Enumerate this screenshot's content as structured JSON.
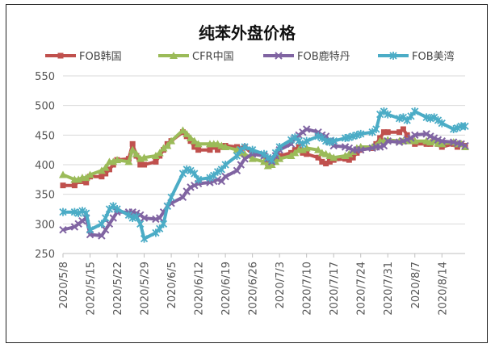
{
  "chart_data": {
    "type": "line",
    "title": "纯苯外盘价格",
    "xlabel": "",
    "ylabel": "",
    "ylim": [
      250,
      550
    ],
    "yticks": [
      "550",
      "500",
      "450",
      "400",
      "350",
      "300",
      "250"
    ],
    "xtick_labels": [
      "2020/5/8",
      "2020/5/15",
      "2020/5/22",
      "2020/5/29",
      "2020/6/5",
      "2020/6/12",
      "2020/6/19",
      "2020/6/26",
      "2020/7/3",
      "2020/7/10",
      "2020/7/17",
      "2020/7/24",
      "2020/7/31",
      "2020/8/7",
      "2020/8/14"
    ],
    "x_start": "2020/5/8",
    "x_end": "2020/8/20",
    "grid": true,
    "legend_position": "top",
    "series": [
      {
        "name": "FOB韩国",
        "color": "#C0504D",
        "marker": "square",
        "x": [
          "2020/5/8",
          "2020/5/11",
          "2020/5/12",
          "2020/5/13",
          "2020/5/14",
          "2020/5/15",
          "2020/5/18",
          "2020/5/19",
          "2020/5/20",
          "2020/5/21",
          "2020/5/22",
          "2020/5/25",
          "2020/5/26",
          "2020/5/27",
          "2020/5/28",
          "2020/5/29",
          "2020/6/1",
          "2020/6/2",
          "2020/6/3",
          "2020/6/4",
          "2020/6/5",
          "2020/6/8",
          "2020/6/9",
          "2020/6/10",
          "2020/6/11",
          "2020/6/12",
          "2020/6/15",
          "2020/6/16",
          "2020/6/17",
          "2020/6/18",
          "2020/6/19",
          "2020/6/22",
          "2020/6/23",
          "2020/6/24",
          "2020/6/26",
          "2020/6/29",
          "2020/6/30",
          "2020/7/1",
          "2020/7/2",
          "2020/7/3",
          "2020/7/6",
          "2020/7/7",
          "2020/7/8",
          "2020/7/9",
          "2020/7/10",
          "2020/7/13",
          "2020/7/14",
          "2020/7/15",
          "2020/7/16",
          "2020/7/17",
          "2020/7/20",
          "2020/7/21",
          "2020/7/22",
          "2020/7/23",
          "2020/7/24",
          "2020/7/27",
          "2020/7/28",
          "2020/7/29",
          "2020/7/30",
          "2020/7/31",
          "2020/8/3",
          "2020/8/4",
          "2020/8/5",
          "2020/8/6",
          "2020/8/7",
          "2020/8/10",
          "2020/8/11",
          "2020/8/12",
          "2020/8/13",
          "2020/8/14",
          "2020/8/17",
          "2020/8/18",
          "2020/8/19",
          "2020/8/20"
        ],
        "values": [
          365,
          365,
          372,
          372,
          370,
          380,
          380,
          385,
          392,
          400,
          408,
          410,
          435,
          415,
          400,
          400,
          405,
          415,
          425,
          435,
          440,
          455,
          448,
          440,
          430,
          425,
          425,
          430,
          425,
          430,
          432,
          430,
          427,
          430,
          418,
          415,
          402,
          400,
          412,
          415,
          420,
          425,
          430,
          420,
          418,
          412,
          405,
          402,
          405,
          408,
          410,
          408,
          412,
          420,
          425,
          428,
          435,
          445,
          455,
          455,
          455,
          460,
          450,
          440,
          435,
          435,
          435,
          440,
          435,
          430,
          435,
          430,
          435,
          432
        ]
      },
      {
        "name": "CFR中国",
        "color": "#9BBB59",
        "marker": "triangle",
        "x": [
          "2020/5/8",
          "2020/5/11",
          "2020/5/12",
          "2020/5/13",
          "2020/5/14",
          "2020/5/15",
          "2020/5/18",
          "2020/5/19",
          "2020/5/20",
          "2020/5/21",
          "2020/5/22",
          "2020/5/25",
          "2020/5/26",
          "2020/5/27",
          "2020/5/28",
          "2020/5/29",
          "2020/6/1",
          "2020/6/2",
          "2020/6/3",
          "2020/6/4",
          "2020/6/5",
          "2020/6/8",
          "2020/6/9",
          "2020/6/10",
          "2020/6/11",
          "2020/6/12",
          "2020/6/15",
          "2020/6/16",
          "2020/6/17",
          "2020/6/18",
          "2020/6/19",
          "2020/6/22",
          "2020/6/23",
          "2020/6/24",
          "2020/6/26",
          "2020/6/29",
          "2020/6/30",
          "2020/7/1",
          "2020/7/2",
          "2020/7/3",
          "2020/7/6",
          "2020/7/7",
          "2020/7/8",
          "2020/7/9",
          "2020/7/10",
          "2020/7/13",
          "2020/7/14",
          "2020/7/15",
          "2020/7/16",
          "2020/7/17",
          "2020/7/20",
          "2020/7/21",
          "2020/7/22",
          "2020/7/23",
          "2020/7/24",
          "2020/7/27",
          "2020/7/28",
          "2020/7/29",
          "2020/7/30",
          "2020/7/31",
          "2020/8/3",
          "2020/8/4",
          "2020/8/5",
          "2020/8/6",
          "2020/8/7",
          "2020/8/10",
          "2020/8/11",
          "2020/8/12",
          "2020/8/13",
          "2020/8/14",
          "2020/8/17",
          "2020/8/18",
          "2020/8/19",
          "2020/8/20"
        ],
        "values": [
          383,
          375,
          375,
          378,
          378,
          383,
          390,
          395,
          405,
          405,
          408,
          405,
          425,
          418,
          410,
          412,
          415,
          420,
          428,
          432,
          440,
          458,
          452,
          445,
          440,
          435,
          435,
          435,
          435,
          432,
          430,
          425,
          420,
          418,
          410,
          405,
          398,
          400,
          405,
          410,
          415,
          420,
          425,
          425,
          428,
          425,
          420,
          418,
          415,
          412,
          415,
          418,
          422,
          428,
          430,
          430,
          432,
          440,
          440,
          442,
          440,
          440,
          440,
          442,
          440,
          440,
          438,
          440,
          436,
          435,
          438,
          435,
          435,
          430
        ]
      },
      {
        "name": "FOB鹿特丹",
        "color": "#8064A2",
        "marker": "x",
        "x": [
          "2020/5/8",
          "2020/5/11",
          "2020/5/12",
          "2020/5/13",
          "2020/5/14",
          "2020/5/15",
          "2020/5/18",
          "2020/5/19",
          "2020/5/20",
          "2020/5/21",
          "2020/5/22",
          "2020/5/25",
          "2020/5/26",
          "2020/5/27",
          "2020/5/28",
          "2020/5/29",
          "2020/6/1",
          "2020/6/2",
          "2020/6/3",
          "2020/6/4",
          "2020/6/5",
          "2020/6/8",
          "2020/6/9",
          "2020/6/10",
          "2020/6/11",
          "2020/6/12",
          "2020/6/15",
          "2020/6/16",
          "2020/6/17",
          "2020/6/18",
          "2020/6/19",
          "2020/6/22",
          "2020/6/23",
          "2020/6/24",
          "2020/6/26",
          "2020/6/29",
          "2020/6/30",
          "2020/7/1",
          "2020/7/2",
          "2020/7/3",
          "2020/7/6",
          "2020/7/7",
          "2020/7/8",
          "2020/7/9",
          "2020/7/10",
          "2020/7/13",
          "2020/7/14",
          "2020/7/15",
          "2020/7/16",
          "2020/7/17",
          "2020/7/20",
          "2020/7/21",
          "2020/7/22",
          "2020/7/23",
          "2020/7/24",
          "2020/7/27",
          "2020/7/28",
          "2020/7/29",
          "2020/7/30",
          "2020/7/31",
          "2020/8/3",
          "2020/8/4",
          "2020/8/5",
          "2020/8/6",
          "2020/8/7",
          "2020/8/10",
          "2020/8/11",
          "2020/8/12",
          "2020/8/13",
          "2020/8/14",
          "2020/8/17",
          "2020/8/18",
          "2020/8/19",
          "2020/8/20"
        ],
        "values": [
          290,
          295,
          300,
          305,
          310,
          282,
          280,
          290,
          300,
          310,
          320,
          320,
          320,
          318,
          315,
          310,
          308,
          310,
          320,
          330,
          335,
          345,
          355,
          362,
          365,
          368,
          370,
          372,
          375,
          372,
          380,
          390,
          400,
          410,
          418,
          415,
          410,
          405,
          415,
          425,
          435,
          445,
          450,
          455,
          460,
          455,
          450,
          448,
          440,
          432,
          430,
          428,
          425,
          425,
          425,
          428,
          430,
          430,
          432,
          440,
          438,
          440,
          442,
          445,
          450,
          452,
          448,
          445,
          442,
          440,
          438,
          436,
          435,
          432
        ]
      },
      {
        "name": "FOB美湾",
        "color": "#4BACC6",
        "marker": "star",
        "x": [
          "2020/5/8",
          "2020/5/11",
          "2020/5/12",
          "2020/5/13",
          "2020/5/14",
          "2020/5/15",
          "2020/5/18",
          "2020/5/19",
          "2020/5/20",
          "2020/5/21",
          "2020/5/22",
          "2020/5/25",
          "2020/5/26",
          "2020/5/27",
          "2020/5/28",
          "2020/5/29",
          "2020/6/1",
          "2020/6/2",
          "2020/6/3",
          "2020/6/4",
          "2020/6/5",
          "2020/6/8",
          "2020/6/9",
          "2020/6/10",
          "2020/6/11",
          "2020/6/12",
          "2020/6/15",
          "2020/6/16",
          "2020/6/17",
          "2020/6/18",
          "2020/6/19",
          "2020/6/22",
          "2020/6/23",
          "2020/6/24",
          "2020/6/26",
          "2020/6/29",
          "2020/6/30",
          "2020/7/1",
          "2020/7/2",
          "2020/7/3",
          "2020/7/6",
          "2020/7/7",
          "2020/7/8",
          "2020/7/9",
          "2020/7/10",
          "2020/7/13",
          "2020/7/14",
          "2020/7/15",
          "2020/7/16",
          "2020/7/17",
          "2020/7/20",
          "2020/7/21",
          "2020/7/22",
          "2020/7/23",
          "2020/7/24",
          "2020/7/27",
          "2020/7/28",
          "2020/7/29",
          "2020/7/30",
          "2020/7/31",
          "2020/8/3",
          "2020/8/4",
          "2020/8/5",
          "2020/8/6",
          "2020/8/7",
          "2020/8/10",
          "2020/8/11",
          "2020/8/12",
          "2020/8/13",
          "2020/8/14",
          "2020/8/17",
          "2020/8/18",
          "2020/8/19",
          "2020/8/20"
        ],
        "values": [
          320,
          320,
          318,
          322,
          318,
          290,
          300,
          310,
          325,
          330,
          325,
          315,
          310,
          312,
          300,
          275,
          285,
          292,
          300,
          330,
          345,
          385,
          392,
          390,
          385,
          375,
          378,
          382,
          388,
          392,
          400,
          415,
          425,
          430,
          425,
          418,
          412,
          408,
          420,
          430,
          442,
          446,
          440,
          435,
          440,
          448,
          445,
          440,
          438,
          440,
          445,
          446,
          448,
          450,
          452,
          455,
          460,
          485,
          490,
          485,
          478,
          480,
          475,
          482,
          490,
          480,
          478,
          480,
          475,
          470,
          460,
          462,
          465,
          465
        ]
      }
    ]
  }
}
